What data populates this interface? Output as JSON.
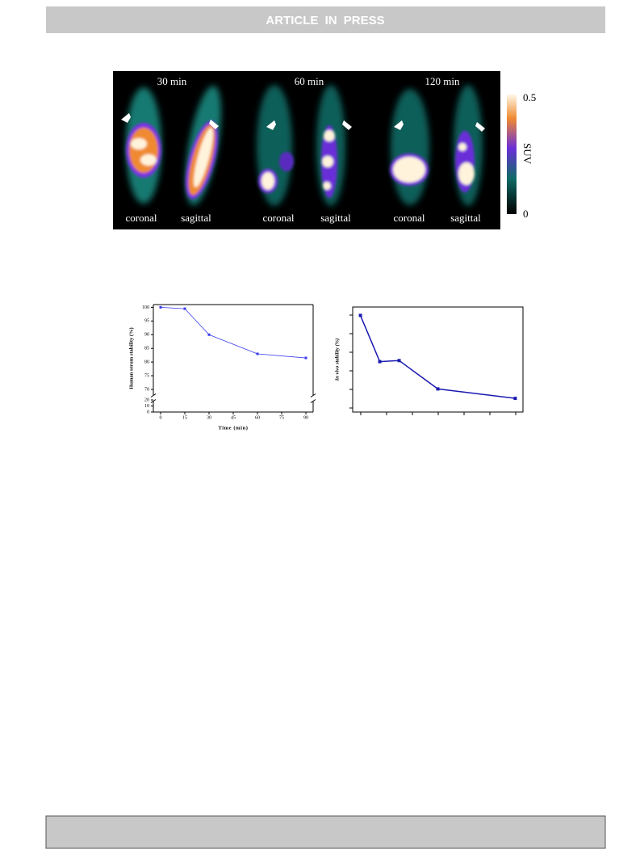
{
  "header": {
    "title": "ARTICLE IN PRESS"
  },
  "figure_image": {
    "time_labels": [
      "30 min",
      "60 min",
      "120 min"
    ],
    "view_labels": [
      "coronal",
      "sagittal",
      "coronal",
      "sagittal",
      "coronal",
      "sagittal"
    ],
    "colorbar": {
      "label": "SUV",
      "max": 0.5,
      "min": 0
    }
  },
  "chart_data": [
    {
      "type": "line",
      "y_label": "Human serum stability (%)",
      "x_label": "Time (min)",
      "x": [
        0,
        15,
        30,
        60,
        90
      ],
      "series": [
        {
          "color": "#3a3af0",
          "values": [
            100,
            99.5,
            90,
            83,
            81.5
          ]
        }
      ],
      "xlim": [
        -4.5,
        94.5
      ],
      "xticks": [
        0,
        15,
        30,
        45,
        60,
        75,
        90
      ],
      "ylim": [
        0,
        101
      ],
      "yticks": [
        0,
        10,
        20,
        70,
        75,
        80,
        85,
        90,
        95,
        100
      ],
      "ybreak": [
        20,
        70
      ]
    },
    {
      "type": "line",
      "y_label": "In vivo stability (%)",
      "x": [
        0,
        10,
        20,
        40,
        80
      ],
      "series": [
        {
          "color": "#1a1ab0",
          "values": [
            92,
            48,
            49,
            22,
            13
          ]
        }
      ],
      "xlim": [
        -4,
        84
      ],
      "ylim": [
        0,
        100
      ]
    }
  ]
}
